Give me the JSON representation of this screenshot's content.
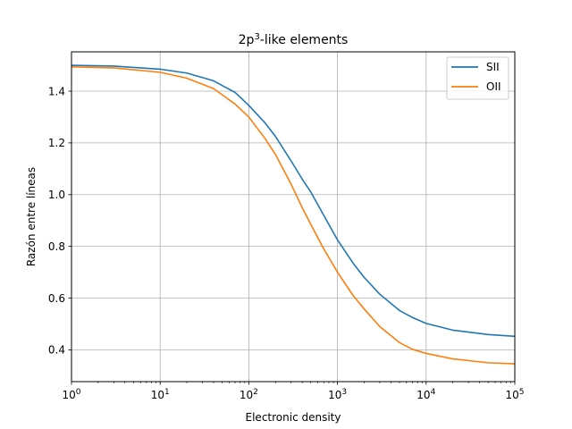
{
  "chart_data": {
    "type": "line",
    "title_base": "2p",
    "title_sup": "3",
    "title_rest": "-like elements",
    "xlabel": "Electronic density",
    "ylabel": "Razón entre líneas",
    "xscale": "log",
    "xlim": [
      1,
      100000
    ],
    "ylim": [
      0.277,
      1.552
    ],
    "grid": true,
    "legend_position": "top-right",
    "x_ticks": [
      {
        "value": 1,
        "base": "10",
        "exp": "0"
      },
      {
        "value": 10,
        "base": "10",
        "exp": "1"
      },
      {
        "value": 100,
        "base": "10",
        "exp": "2"
      },
      {
        "value": 1000,
        "base": "10",
        "exp": "3"
      },
      {
        "value": 10000,
        "base": "10",
        "exp": "4"
      },
      {
        "value": 100000,
        "base": "10",
        "exp": "5"
      }
    ],
    "y_ticks": [
      {
        "value": 0.4,
        "label": "0.4"
      },
      {
        "value": 0.6,
        "label": "0.6"
      },
      {
        "value": 0.8,
        "label": "0.8"
      },
      {
        "value": 1.0,
        "label": "1.0"
      },
      {
        "value": 1.2,
        "label": "1.2"
      },
      {
        "value": 1.4,
        "label": "1.4"
      }
    ],
    "x": [
      1,
      3,
      10,
      20,
      40,
      70,
      100,
      150,
      200,
      300,
      400,
      500,
      700,
      1000,
      1500,
      2000,
      3000,
      5000,
      7000,
      10000,
      20000,
      50000,
      100000
    ],
    "series": [
      {
        "name": "SII",
        "color": "#1f77b4",
        "values": [
          1.5,
          1.497,
          1.485,
          1.47,
          1.44,
          1.395,
          1.345,
          1.28,
          1.225,
          1.13,
          1.06,
          1.01,
          0.92,
          0.825,
          0.735,
          0.68,
          0.615,
          0.552,
          0.525,
          0.502,
          0.476,
          0.459,
          0.452
        ]
      },
      {
        "name": "OII",
        "color": "#ff7f0e",
        "values": [
          1.494,
          1.49,
          1.473,
          1.45,
          1.41,
          1.35,
          1.3,
          1.22,
          1.155,
          1.04,
          0.95,
          0.885,
          0.79,
          0.7,
          0.61,
          0.558,
          0.49,
          0.428,
          0.402,
          0.386,
          0.365,
          0.35,
          0.346
        ]
      }
    ]
  }
}
